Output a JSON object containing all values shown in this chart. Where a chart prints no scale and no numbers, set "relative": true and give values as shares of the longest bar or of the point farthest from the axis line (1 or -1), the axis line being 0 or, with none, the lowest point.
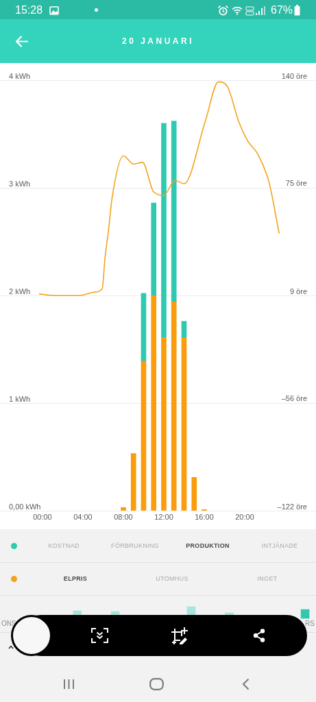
{
  "chart_data": [
    {
      "type": "bar",
      "title": "20 JANUARI",
      "stacked": true,
      "x": [
        8,
        9,
        10,
        11,
        12,
        13,
        14,
        15,
        16
      ],
      "series": [
        {
          "color": "#fb9c0c",
          "values": [
            0.03,
            0.53,
            1.39,
            2.0,
            1.61,
            1.94,
            1.61,
            0.31,
            0.01
          ]
        },
        {
          "color": "#2fc9b1",
          "values": [
            0,
            0,
            0.63,
            0.86,
            1.99,
            1.68,
            0.15,
            0,
            0
          ]
        },
        {
          "type": "line",
          "axis": "y2",
          "color": "#f4a21b",
          "x": [
            -0.3,
            1.0,
            2.4,
            3.7,
            5.1,
            5.9,
            6.2,
            6.5,
            6.9,
            8.0,
            9.0,
            9.9,
            11.0,
            12.0,
            13.1,
            14.0,
            16.1,
            17.4,
            18.3,
            19.4,
            20.3,
            21.3,
            22.4,
            23.4
          ],
          "values": [
            10,
            9,
            9,
            9,
            11,
            13,
            33,
            47,
            69,
            94,
            89,
            90,
            72,
            70,
            79,
            77,
            115,
            139,
            136,
            115,
            103,
            95,
            78,
            47
          ]
        }
      ],
      "xlim": [
        -4.2,
        27.05
      ],
      "xticks": [
        {
          "value": 0,
          "label": "00:00"
        },
        {
          "value": 4,
          "label": "04:00"
        },
        {
          "value": 8,
          "label": "08:00"
        },
        {
          "value": 12,
          "label": "12:00"
        },
        {
          "value": 16,
          "label": "16:00"
        },
        {
          "value": 20,
          "label": "20:00"
        }
      ],
      "ylim": [
        0,
        4
      ],
      "yticks": [
        {
          "value": 0,
          "label": "0,00 kWh"
        },
        {
          "value": 1,
          "label": "1 kWh"
        },
        {
          "value": 2,
          "label": "2 kWh"
        },
        {
          "value": 3,
          "label": "3 kWh"
        },
        {
          "value": 4,
          "label": "4 kWh"
        }
      ],
      "y2lim": [
        -122,
        140
      ],
      "y2ticks": [
        {
          "value": -122,
          "label": "–122 öre"
        },
        {
          "value": -56,
          "label": "–56 öre"
        },
        {
          "value": 9,
          "label": "9 öre"
        },
        {
          "value": 75,
          "label": "75 öre"
        },
        {
          "value": 140,
          "label": "140 öre"
        }
      ],
      "grid": "y",
      "marker": "none",
      "line_style": "solid",
      "annotations": [
        "15:28",
        "67%",
        "KOSTNAD",
        "FÖRBRUKNING",
        "PRODUKTION",
        "INTJÄNADE",
        "ELPRIS",
        "UTOMHUS",
        "INGET"
      ]
    },
    {
      "type": "bar",
      "relative": true,
      "categories": [
        "ONS",
        null,
        null,
        null,
        null,
        null,
        null,
        null,
        "RS"
      ],
      "values": [
        null,
        null,
        0.65,
        0.59,
        null,
        1,
        0.47,
        null,
        0.76
      ],
      "colors": [
        "#a8e6dc",
        "#a8e6dc",
        "#a8e6dc",
        "#a8e6dc",
        "#a8e6dc",
        "#a8e6dc",
        "#a8e6dc",
        "#a8e6dc",
        "#33c7b0"
      ]
    }
  ]
}
